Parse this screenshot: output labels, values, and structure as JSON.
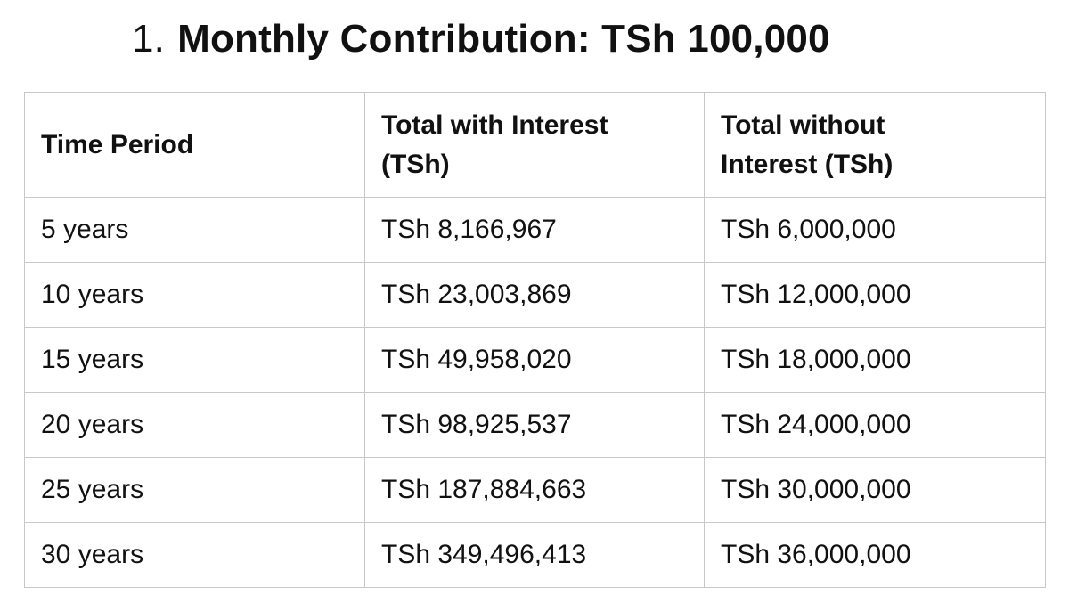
{
  "heading": {
    "number": "1.",
    "title": "Monthly Contribution: TSh 100,000"
  },
  "table": {
    "headers": {
      "period": "Time Period",
      "with_interest_line1": "Total with Interest",
      "with_interest_line2": "(TSh)",
      "without_interest_line1": "Total without",
      "without_interest_line2": "Interest (TSh)"
    },
    "rows": [
      {
        "period": "5 years",
        "with_interest": "TSh 8,166,967",
        "without_interest": "TSh 6,000,000"
      },
      {
        "period": "10 years",
        "with_interest": "TSh 23,003,869",
        "without_interest": "TSh 12,000,000"
      },
      {
        "period": "15 years",
        "with_interest": "TSh 49,958,020",
        "without_interest": "TSh 18,000,000"
      },
      {
        "period": "20 years",
        "with_interest": "TSh 98,925,537",
        "without_interest": "TSh 24,000,000"
      },
      {
        "period": "25 years",
        "with_interest": "TSh 187,884,663",
        "without_interest": "TSh 30,000,000"
      },
      {
        "period": "30 years",
        "with_interest": "TSh 349,496,413",
        "without_interest": "TSh 36,000,000"
      }
    ]
  }
}
